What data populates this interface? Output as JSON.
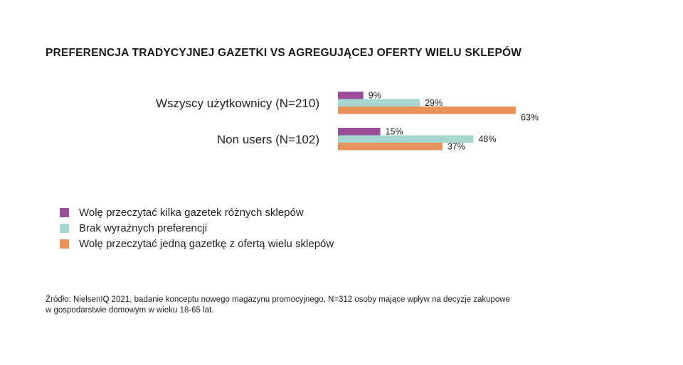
{
  "chart_data": {
    "type": "bar",
    "orientation": "horizontal",
    "title": "PREFERENCJA TRADYCYJNEJ GAZETKI VS AGREGUJĄCEJ OFERTY WIELU SKLEPÓW",
    "categories": [
      "Wszyscy użytkownicy (N=210)",
      "Non users (N=102)"
    ],
    "series": [
      {
        "name": "Wolę przeczytać kilka gazetek różnych sklepów",
        "color": "#9b4f9b",
        "values": [
          9,
          15
        ],
        "labels": [
          "9%",
          "15%"
        ]
      },
      {
        "name": "Brak wyraźnych preferencji",
        "color": "#a6d8d0",
        "values": [
          29,
          48
        ],
        "labels": [
          "29%",
          "48%"
        ]
      },
      {
        "name": "Wolę przeczytać jedną gazetkę z ofertą wielu sklepów",
        "color": "#e8925a",
        "values": [
          63,
          37
        ],
        "labels": [
          "63%",
          "37%"
        ]
      }
    ],
    "unit": "%",
    "legend_position": "bottom-left",
    "grid": false
  },
  "source_note": {
    "line1": "Źródło: NielsenIQ 2021, badanie konceptu nowego magazynu promocyjnego, N=312 osoby mające wpływ na decyzje zakupowe",
    "line2": "w gospodarstwie domowym w wieku 18-65 lat."
  }
}
